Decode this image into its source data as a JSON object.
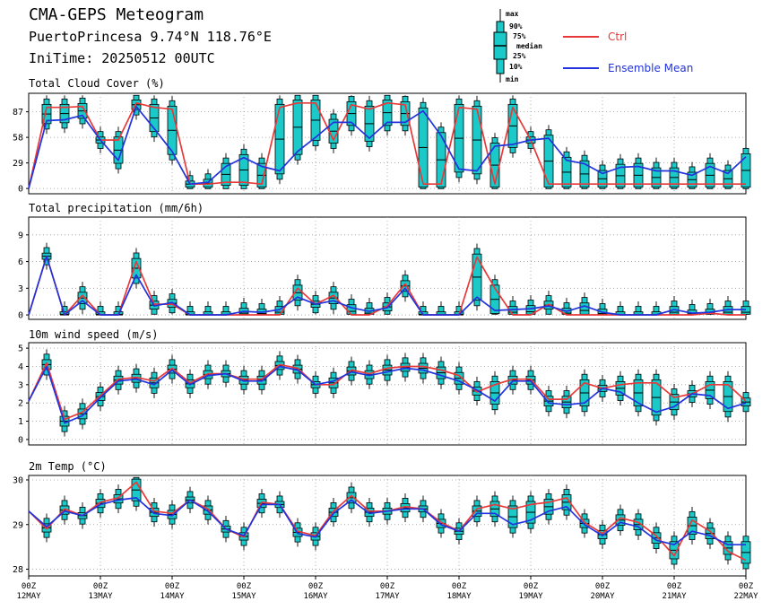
{
  "header": {
    "title": "CMA-GEPS Meteogram",
    "location": "PuertoPrincesa 9.74°N 118.76°E",
    "init": "IniTime: 20250512 00UTC"
  },
  "legend": {
    "box_labels": [
      "max",
      "90%",
      "75%",
      "median",
      "25%",
      "10%",
      "min"
    ],
    "series": [
      {
        "name": "Ctrl",
        "color": "#e8393a"
      },
      {
        "name": "Ensemble Mean",
        "color": "#2233dd"
      }
    ]
  },
  "colors": {
    "box": "#1cc9c9",
    "ctrl": "#e8393a",
    "mean": "#2233dd"
  },
  "chart_data": [
    {
      "type": "line",
      "title": "Total Cloud Cover (%)",
      "yticks": [
        0,
        29,
        58,
        87
      ],
      "ylim": [
        -6,
        108
      ],
      "x": [
        0,
        0.25,
        0.5,
        0.75,
        1,
        1.25,
        1.5,
        1.75,
        2,
        2.25,
        2.5,
        2.75,
        3,
        3.25,
        3.5,
        3.75,
        4,
        4.25,
        4.5,
        4.75,
        5,
        5.25,
        5.5,
        5.75,
        6,
        6.25,
        6.5,
        6.75,
        7,
        7.25,
        7.5,
        7.75,
        8,
        8.25,
        8.5,
        8.75,
        9,
        9.25,
        9.5,
        9.75,
        10
      ],
      "series": [
        {
          "name": "Ctrl",
          "values": [
            0,
            92,
            92,
            93,
            55,
            55,
            97,
            92,
            90,
            5,
            5,
            7,
            7,
            5,
            92,
            97,
            97,
            55,
            95,
            90,
            97,
            95,
            5,
            5,
            92,
            90,
            5,
            92,
            55,
            5,
            5,
            5,
            5,
            5,
            5,
            5,
            5,
            5,
            5,
            5,
            5
          ]
        },
        {
          "name": "Ensemble Mean",
          "values": [
            0,
            77,
            78,
            83,
            55,
            32,
            93,
            68,
            42,
            5,
            7,
            25,
            35,
            25,
            20,
            42,
            58,
            75,
            75,
            57,
            75,
            75,
            88,
            60,
            22,
            20,
            48,
            50,
            55,
            57,
            32,
            28,
            17,
            24,
            25,
            20,
            20,
            15,
            25,
            17,
            36
          ]
        }
      ]
    },
    {
      "type": "line",
      "title": "Total precipitation (mm/6h)",
      "yticks": [
        0,
        3,
        6,
        9
      ],
      "ylim": [
        -0.5,
        11
      ],
      "x": [
        0,
        0.25,
        0.5,
        0.75,
        1,
        1.25,
        1.5,
        1.75,
        2,
        2.25,
        2.5,
        2.75,
        3,
        3.25,
        3.5,
        3.75,
        4,
        4.25,
        4.5,
        4.75,
        5,
        5.25,
        5.5,
        5.75,
        6,
        6.25,
        6.5,
        6.75,
        7,
        7.25,
        7.5,
        7.75,
        8,
        8.25,
        8.5,
        8.75,
        9,
        9.25,
        9.5,
        9.75,
        10
      ],
      "series": [
        {
          "name": "Ctrl",
          "values": [
            0,
            6.6,
            0,
            2.2,
            0,
            0,
            6.0,
            1.2,
            1.2,
            0,
            0,
            0,
            0,
            0,
            0,
            3.0,
            1.2,
            2.2,
            0,
            0,
            1.0,
            3.5,
            0,
            0,
            0,
            6.5,
            3.0,
            0,
            0,
            1.2,
            0,
            0,
            0,
            0,
            0,
            0,
            0,
            0,
            0.2,
            0,
            0
          ]
        },
        {
          "name": "Ensemble Mean",
          "values": [
            0,
            6.6,
            0,
            1.6,
            0,
            0,
            4.5,
            1.0,
            1.4,
            0,
            0,
            0,
            0.4,
            0.3,
            0.6,
            2.0,
            1.2,
            1.6,
            0.8,
            0.4,
            0.8,
            3.0,
            0,
            0,
            0,
            2.0,
            0.5,
            0.6,
            0.7,
            1.0,
            0.4,
            1.0,
            0.3,
            0,
            0,
            0,
            0.6,
            0.2,
            0.3,
            0.6,
            0.6
          ]
        }
      ]
    },
    {
      "type": "line",
      "title": "10m wind speed (m/s)",
      "yticks": [
        0,
        1,
        2,
        3,
        4,
        5
      ],
      "ylim": [
        -0.3,
        5.3
      ],
      "x": [
        0,
        0.25,
        0.5,
        0.75,
        1,
        1.25,
        1.5,
        1.75,
        2,
        2.25,
        2.5,
        2.75,
        3,
        3.25,
        3.5,
        3.75,
        4,
        4.25,
        4.5,
        4.75,
        5,
        5.25,
        5.5,
        5.75,
        6,
        6.25,
        6.5,
        6.75,
        7,
        7.25,
        7.5,
        7.75,
        8,
        8.25,
        8.5,
        8.75,
        9,
        9.25,
        9.5,
        9.75,
        10
      ],
      "series": [
        {
          "name": "Ctrl",
          "values": [
            2.1,
            4.2,
            1.1,
            1.5,
            2.4,
            3.3,
            3.4,
            3.2,
            3.9,
            3.1,
            3.6,
            3.6,
            3.3,
            3.3,
            4.1,
            3.9,
            3.0,
            3.0,
            3.8,
            3.6,
            3.9,
            4.0,
            4.0,
            3.8,
            3.5,
            2.6,
            3.0,
            3.3,
            3.3,
            2.2,
            2.2,
            3.1,
            2.8,
            3.0,
            3.1,
            3.1,
            2.3,
            2.5,
            3.0,
            3.0,
            2.1
          ]
        },
        {
          "name": "Ensemble Mean",
          "values": [
            2.1,
            4.0,
            0.9,
            1.3,
            2.3,
            3.2,
            3.3,
            3.0,
            3.8,
            3.0,
            3.5,
            3.6,
            3.2,
            3.2,
            4.0,
            3.8,
            3.0,
            3.2,
            3.7,
            3.5,
            3.7,
            3.9,
            3.8,
            3.5,
            3.2,
            2.7,
            2.1,
            3.2,
            3.2,
            2.0,
            1.9,
            2.0,
            2.8,
            2.6,
            2.0,
            1.5,
            1.8,
            2.5,
            2.4,
            1.7,
            2.0
          ]
        }
      ]
    },
    {
      "type": "line",
      "title": "2m Temp (°C)",
      "yticks": [
        28,
        29,
        30
      ],
      "ylim": [
        27.85,
        30.1
      ],
      "x": [
        0,
        0.25,
        0.5,
        0.75,
        1,
        1.25,
        1.5,
        1.75,
        2,
        2.25,
        2.5,
        2.75,
        3,
        3.25,
        3.5,
        3.75,
        4,
        4.25,
        4.5,
        4.75,
        5,
        5.25,
        5.5,
        5.75,
        6,
        6.25,
        6.5,
        6.75,
        7,
        7.25,
        7.5,
        7.75,
        8,
        8.25,
        8.5,
        8.75,
        9,
        9.25,
        9.5,
        9.75,
        10
      ],
      "series": [
        {
          "name": "Ctrl",
          "values": [
            29.3,
            28.9,
            29.35,
            29.2,
            29.5,
            29.6,
            29.95,
            29.3,
            29.25,
            29.55,
            29.35,
            28.9,
            28.72,
            29.5,
            29.45,
            28.85,
            28.75,
            29.3,
            29.65,
            29.3,
            29.3,
            29.4,
            29.35,
            29.05,
            28.85,
            29.35,
            29.45,
            29.35,
            29.45,
            29.5,
            29.6,
            29.05,
            28.8,
            29.15,
            29.05,
            28.75,
            28.3,
            29.1,
            28.85,
            28.4,
            28.2
          ]
        },
        {
          "name": "Ensemble Mean",
          "values": [
            29.3,
            28.95,
            29.3,
            29.2,
            29.45,
            29.55,
            29.6,
            29.25,
            29.2,
            29.55,
            29.3,
            28.9,
            28.75,
            29.45,
            29.45,
            28.8,
            28.72,
            29.25,
            29.55,
            29.25,
            29.3,
            29.35,
            29.35,
            29.0,
            28.85,
            29.25,
            29.25,
            29.0,
            29.1,
            29.3,
            29.4,
            29.0,
            28.75,
            29.05,
            28.95,
            28.65,
            28.55,
            28.85,
            28.75,
            28.55,
            28.55
          ]
        }
      ]
    }
  ],
  "x_axis": {
    "labels": [
      {
        "hour": "00Z",
        "date": "12MAY"
      },
      {
        "hour": "00Z",
        "date": "13MAY"
      },
      {
        "hour": "00Z",
        "date": "14MAY"
      },
      {
        "hour": "00Z",
        "date": "15MAY"
      },
      {
        "hour": "00Z",
        "date": "16MAY"
      },
      {
        "hour": "00Z",
        "date": "17MAY"
      },
      {
        "hour": "00Z",
        "date": "18MAY"
      },
      {
        "hour": "00Z",
        "date": "19MAY"
      },
      {
        "hour": "00Z",
        "date": "20MAY"
      },
      {
        "hour": "00Z",
        "date": "21MAY"
      },
      {
        "hour": "00Z",
        "date": "22MAY"
      }
    ]
  }
}
